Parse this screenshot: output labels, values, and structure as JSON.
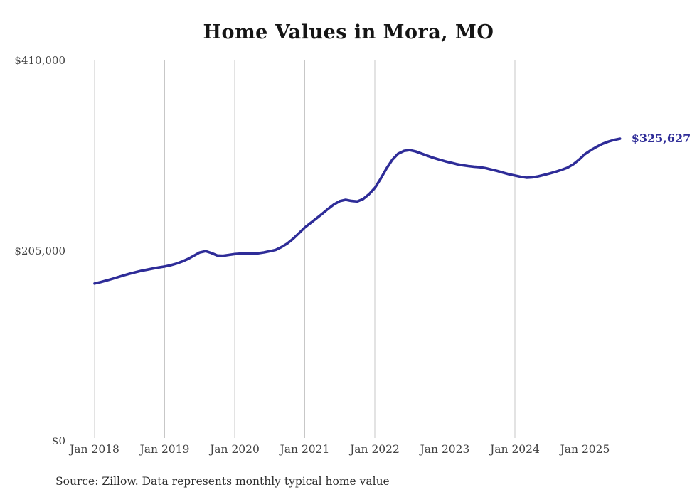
{
  "chart": {
    "title": "Home Values in Mora, MO",
    "source": "Source: Zillow. Data represents monthly typical home value",
    "end_label": "$325,627"
  },
  "chart_data": {
    "type": "line",
    "title": "Home Values in Mora, MO",
    "xlabel": "",
    "ylabel": "",
    "x_start": "Jan 2018",
    "x_end": "Jul 2025",
    "frequency": "monthly",
    "x_tick_labels": [
      "Jan 2018",
      "Jan 2019",
      "Jan 2020",
      "Jan 2021",
      "Jan 2022",
      "Jan 2023",
      "Jan 2024",
      "Jan 2025"
    ],
    "x_tick_month_indices": [
      0,
      12,
      24,
      36,
      48,
      60,
      72,
      84
    ],
    "y_ticks": [
      {
        "label": "$410,000",
        "value": 410000
      },
      {
        "label": "$205,000",
        "value": 205000
      },
      {
        "label": "$0",
        "value": 0
      }
    ],
    "ylim": [
      0,
      410000
    ],
    "grid": "vertical-only",
    "legend": "none",
    "line_color": "#2e2c98",
    "gridline_color": "#c7c7c7",
    "values": [
      169500,
      171000,
      172700,
      174500,
      176400,
      178300,
      180100,
      181700,
      183200,
      184500,
      185700,
      186800,
      187800,
      189200,
      191000,
      193300,
      196000,
      199500,
      203000,
      204500,
      202500,
      199800,
      199500,
      200400,
      201300,
      201800,
      202000,
      201800,
      202200,
      203100,
      204400,
      205800,
      208800,
      212700,
      217800,
      223800,
      229900,
      234800,
      239700,
      244800,
      250000,
      254800,
      258300,
      259800,
      258600,
      258000,
      260600,
      265800,
      272500,
      282500,
      293500,
      303000,
      309500,
      312500,
      313400,
      311900,
      309600,
      307300,
      305100,
      303200,
      301400,
      299900,
      298300,
      297100,
      296200,
      295500,
      295000,
      293900,
      292400,
      290800,
      289000,
      287300,
      285900,
      284600,
      283600,
      284000,
      285100,
      286600,
      288200,
      290100,
      292100,
      294400,
      298100,
      303200,
      309100,
      313300,
      316900,
      320100,
      322500,
      324300,
      325627
    ],
    "latest_value": 325627,
    "latest_label": "$325,627"
  }
}
